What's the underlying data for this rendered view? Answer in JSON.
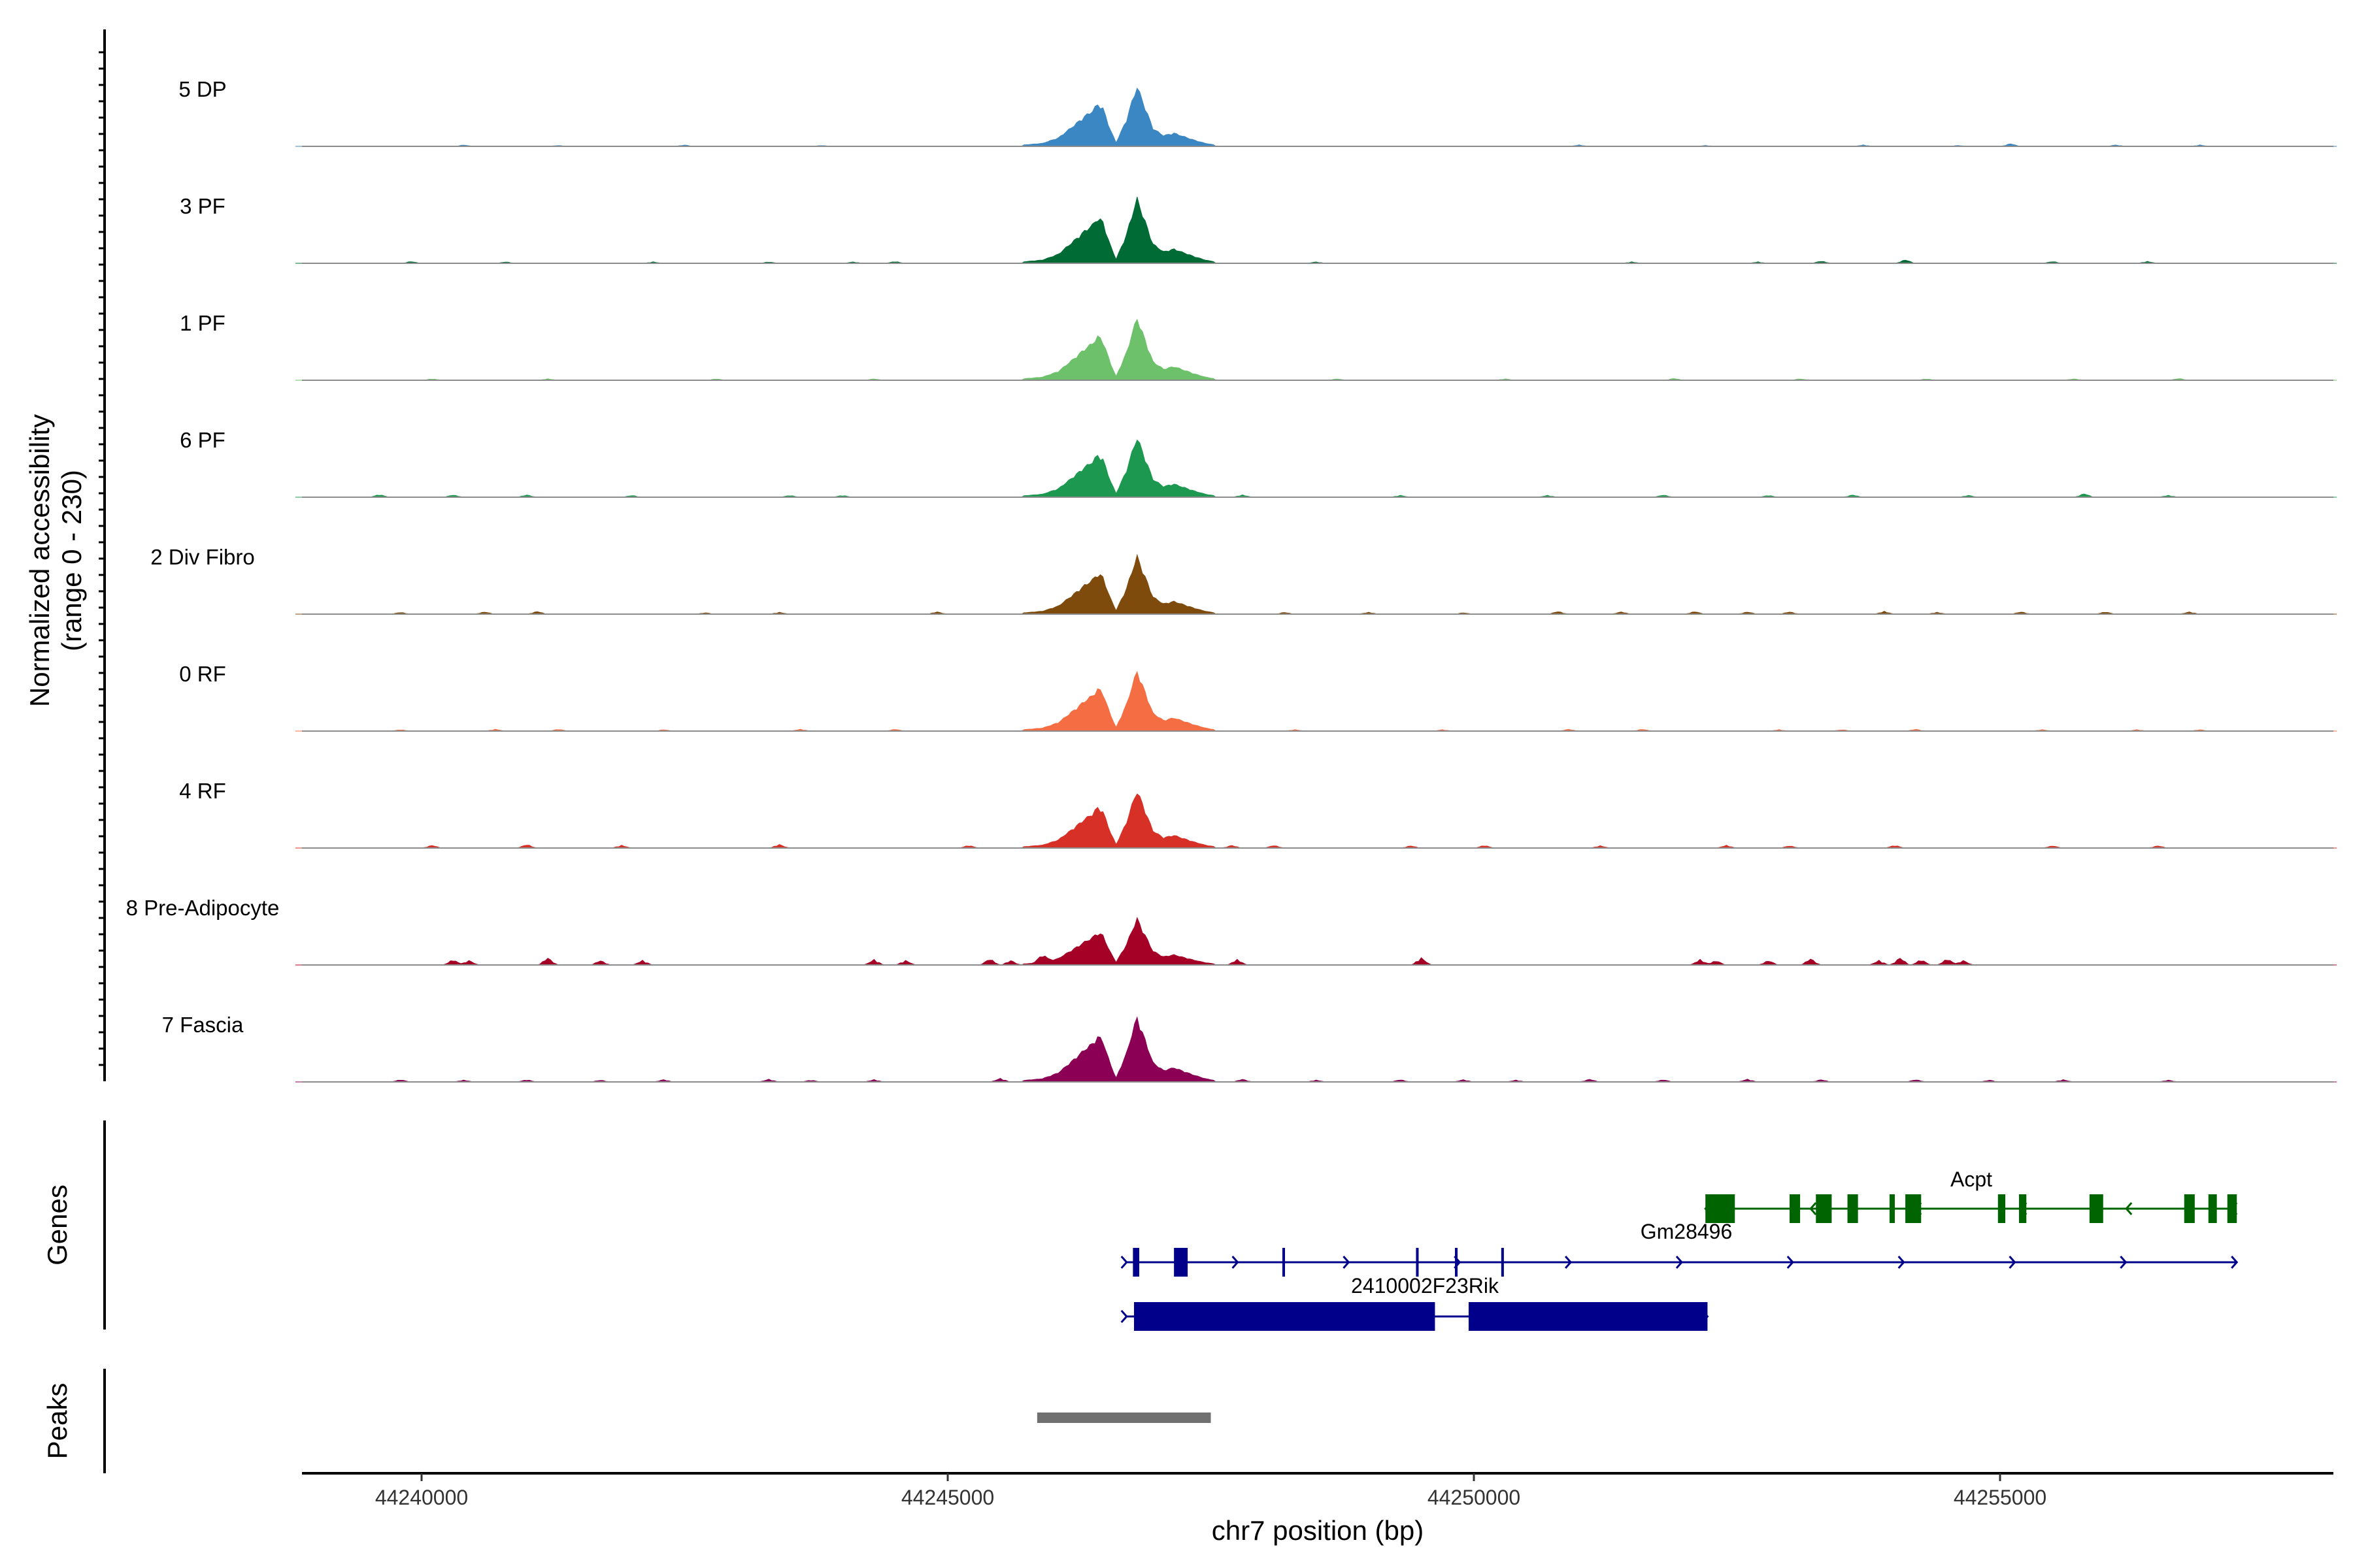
{
  "chart_data": {
    "type": "area",
    "title": "",
    "ylabel_line1": "Normalized accessibility",
    "ylabel_line2": "(range 0 - 230)",
    "xlabel": "chr7 position (bp)",
    "xlim": [
      44238800,
      44258200
    ],
    "xticks": [
      44240000,
      44245000,
      44250000,
      44255000
    ],
    "xtick_labels": [
      "44240000",
      "44245000",
      "44250000",
      "44255000"
    ],
    "ylim": [
      0,
      230
    ],
    "peak_profile": {
      "x": [
        44245700,
        44245900,
        44246050,
        44246200,
        44246300,
        44246380,
        44246420,
        44246470,
        44246540,
        44246600,
        44246700,
        44246760,
        44246800,
        44246860,
        44246950,
        44247050,
        44247150,
        44247250,
        44247350,
        44247450,
        44247550
      ],
      "rel": [
        0.02,
        0.05,
        0.14,
        0.35,
        0.5,
        0.6,
        0.7,
        0.66,
        0.3,
        0.06,
        0.45,
        0.8,
        1.0,
        0.72,
        0.3,
        0.18,
        0.22,
        0.16,
        0.1,
        0.05,
        0.02
      ]
    },
    "series": [
      {
        "name": "5 DP",
        "color": "#3A87C3",
        "peak": 130,
        "bumps": [
          [
            44240400,
            3
          ],
          [
            44241300,
            2
          ],
          [
            44242500,
            3
          ],
          [
            44243800,
            2
          ],
          [
            44251000,
            3
          ],
          [
            44252200,
            2
          ],
          [
            44253700,
            3
          ],
          [
            44254600,
            2
          ],
          [
            44255100,
            6
          ],
          [
            44256100,
            3
          ],
          [
            44256900,
            3
          ]
        ]
      },
      {
        "name": "3 PF",
        "color": "#006B34",
        "peak": 140,
        "bumps": [
          [
            44239900,
            4
          ],
          [
            44240800,
            3
          ],
          [
            44242200,
            3
          ],
          [
            44243300,
            3
          ],
          [
            44244100,
            3
          ],
          [
            44244500,
            4
          ],
          [
            44248500,
            3
          ],
          [
            44251500,
            3
          ],
          [
            44252700,
            3
          ],
          [
            44253300,
            5
          ],
          [
            44254100,
            8
          ],
          [
            44255500,
            4
          ],
          [
            44256400,
            4
          ]
        ]
      },
      {
        "name": "1 PF",
        "color": "#6CC16A",
        "peak": 135,
        "bumps": [
          [
            44240100,
            3
          ],
          [
            44241200,
            3
          ],
          [
            44242800,
            3
          ],
          [
            44244300,
            3
          ],
          [
            44248700,
            3
          ],
          [
            44250300,
            3
          ],
          [
            44251900,
            4
          ],
          [
            44253100,
            3
          ],
          [
            44254300,
            3
          ],
          [
            44255700,
            3
          ],
          [
            44256700,
            4
          ]
        ]
      },
      {
        "name": "6 PF",
        "color": "#1D9850",
        "peak": 130,
        "bumps": [
          [
            44239600,
            6
          ],
          [
            44240300,
            5
          ],
          [
            44241000,
            5
          ],
          [
            44242000,
            4
          ],
          [
            44243500,
            4
          ],
          [
            44244000,
            4
          ],
          [
            44247800,
            5
          ],
          [
            44249300,
            4
          ],
          [
            44250700,
            4
          ],
          [
            44251800,
            5
          ],
          [
            44252800,
            4
          ],
          [
            44253600,
            5
          ],
          [
            44254700,
            4
          ],
          [
            44255800,
            8
          ],
          [
            44256600,
            4
          ]
        ]
      },
      {
        "name": "2 Div Fibro",
        "color": "#7F4B0D",
        "peak": 125,
        "bumps": [
          [
            44239800,
            4
          ],
          [
            44240600,
            5
          ],
          [
            44241100,
            6
          ],
          [
            44242700,
            3
          ],
          [
            44243400,
            4
          ],
          [
            44244900,
            5
          ],
          [
            44248200,
            4
          ],
          [
            44249000,
            4
          ],
          [
            44249900,
            3
          ],
          [
            44250800,
            6
          ],
          [
            44251400,
            5
          ],
          [
            44252100,
            6
          ],
          [
            44252600,
            5
          ],
          [
            44253000,
            5
          ],
          [
            44253900,
            6
          ],
          [
            44254400,
            4
          ],
          [
            44255200,
            5
          ],
          [
            44256000,
            5
          ],
          [
            44256800,
            5
          ]
        ]
      },
      {
        "name": "0 RF",
        "color": "#F46D43",
        "peak": 130,
        "bumps": [
          [
            44239800,
            3
          ],
          [
            44240700,
            4
          ],
          [
            44241300,
            4
          ],
          [
            44242300,
            3
          ],
          [
            44243600,
            4
          ],
          [
            44244500,
            4
          ],
          [
            44248300,
            3
          ],
          [
            44249700,
            3
          ],
          [
            44250900,
            4
          ],
          [
            44251600,
            4
          ],
          [
            44252900,
            3
          ],
          [
            44253500,
            3
          ],
          [
            44254200,
            4
          ],
          [
            44255400,
            3
          ],
          [
            44256300,
            3
          ],
          [
            44256900,
            3
          ]
        ]
      },
      {
        "name": "4 RF",
        "color": "#D73027",
        "peak": 125,
        "bumps": [
          [
            44240100,
            6
          ],
          [
            44241000,
            8
          ],
          [
            44241900,
            6
          ],
          [
            44243400,
            8
          ],
          [
            44245200,
            6
          ],
          [
            44247700,
            6
          ],
          [
            44248100,
            6
          ],
          [
            44249400,
            5
          ],
          [
            44250100,
            6
          ],
          [
            44251200,
            5
          ],
          [
            44252400,
            6
          ],
          [
            44253000,
            5
          ],
          [
            44254000,
            6
          ],
          [
            44255500,
            5
          ],
          [
            44256500,
            5
          ]
        ]
      },
      {
        "name": "8 Pre-Adipocyte",
        "color": "#A50026",
        "peak": 100,
        "bumps": [
          [
            44240300,
            12
          ],
          [
            44240450,
            10
          ],
          [
            44241200,
            16
          ],
          [
            44241700,
            10
          ],
          [
            44242100,
            10
          ],
          [
            44244300,
            12
          ],
          [
            44244600,
            10
          ],
          [
            44245400,
            14
          ],
          [
            44245600,
            10
          ],
          [
            44245900,
            18
          ],
          [
            44247750,
            12
          ],
          [
            44249500,
            16
          ],
          [
            44252150,
            12
          ],
          [
            44252300,
            10
          ],
          [
            44252800,
            10
          ],
          [
            44253200,
            14
          ],
          [
            44253850,
            10
          ],
          [
            44254050,
            16
          ],
          [
            44254250,
            12
          ],
          [
            44254500,
            14
          ],
          [
            44254650,
            10
          ]
        ]
      },
      {
        "name": "7 Fascia",
        "color": "#8B0055",
        "peak": 140,
        "bumps": [
          [
            44239800,
            5
          ],
          [
            44240400,
            4
          ],
          [
            44241000,
            5
          ],
          [
            44241700,
            4
          ],
          [
            44242300,
            5
          ],
          [
            44243300,
            6
          ],
          [
            44243700,
            4
          ],
          [
            44244300,
            5
          ],
          [
            44245500,
            8
          ],
          [
            44247800,
            6
          ],
          [
            44248500,
            4
          ],
          [
            44249300,
            5
          ],
          [
            44249900,
            5
          ],
          [
            44250400,
            4
          ],
          [
            44251100,
            6
          ],
          [
            44251800,
            5
          ],
          [
            44252600,
            6
          ],
          [
            44253300,
            5
          ],
          [
            44254200,
            5
          ],
          [
            44254900,
            4
          ],
          [
            44255600,
            5
          ],
          [
            44256600,
            4
          ]
        ]
      }
    ],
    "genes_label": "Genes",
    "genes": [
      {
        "name": "Acpt",
        "color": "#006400",
        "strand": "-",
        "start": 44252200,
        "end": 44257200,
        "exons": [
          [
            44252200,
            44252480
          ],
          [
            44253000,
            44253100
          ],
          [
            44253250,
            44253400
          ],
          [
            44253550,
            44253650
          ],
          [
            44253950,
            44254000
          ],
          [
            44254100,
            44254250
          ],
          [
            44254980,
            44255050
          ],
          [
            44255180,
            44255250
          ],
          [
            44255850,
            44255980
          ],
          [
            44256750,
            44256850
          ],
          [
            44256980,
            44257060
          ],
          [
            44257160,
            44257250
          ]
        ]
      },
      {
        "name": "Gm28496",
        "color": "#00008B",
        "strand": "+",
        "start": 44246700,
        "end": 44257250,
        "exons": [
          [
            44246760,
            44246820
          ],
          [
            44247150,
            44247280
          ],
          [
            44248180,
            44248200
          ],
          [
            44249450,
            44249470
          ],
          [
            44249820,
            44249840
          ],
          [
            44250260,
            44250280
          ]
        ]
      },
      {
        "name": "2410002F23Rik",
        "color": "#00008B",
        "strand": "+",
        "start": 44246700,
        "end": 44252220,
        "exons": [
          [
            44246770,
            44249630
          ],
          [
            44249950,
            44252220
          ]
        ]
      }
    ],
    "peaks_label": "Peaks",
    "peaks": [
      [
        44245850,
        44247500
      ]
    ],
    "peak_color": "#707070"
  }
}
